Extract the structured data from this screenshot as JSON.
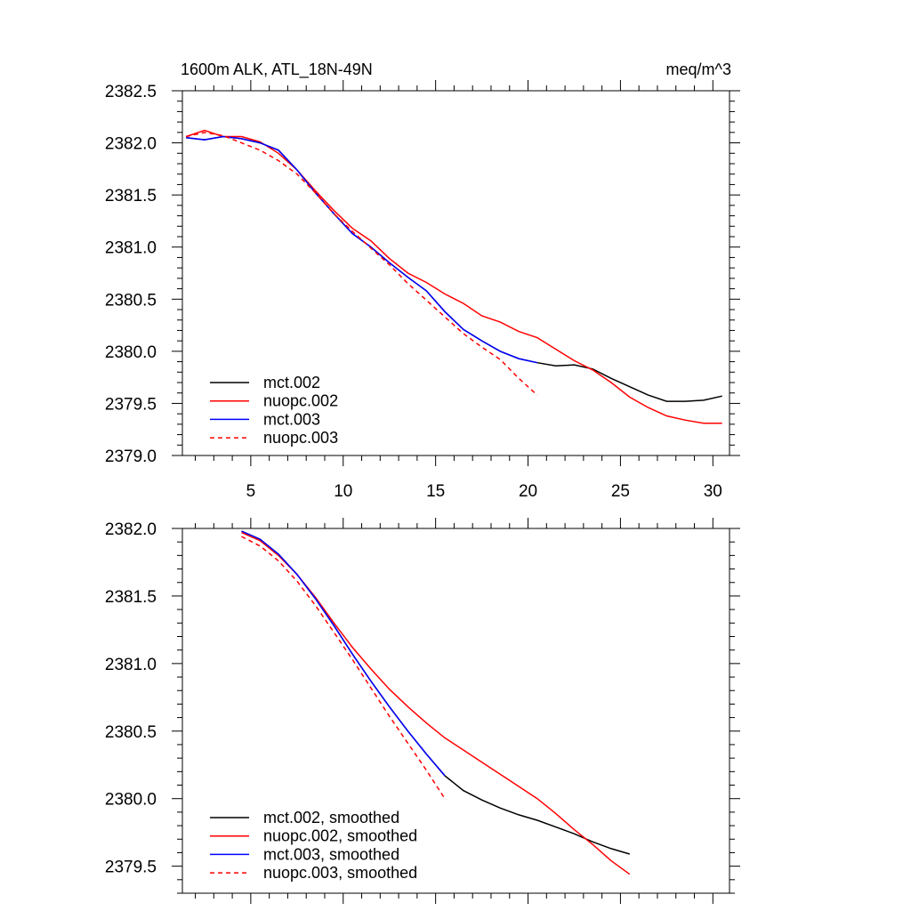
{
  "chart_data": [
    {
      "type": "line",
      "title": "1600m ALK, ATL_18N-49N",
      "units": "meq/m^3",
      "xlim": [
        1.3,
        30.9
      ],
      "ylim": [
        2379.0,
        2382.5
      ],
      "x_ticks": [
        5,
        10,
        15,
        20,
        25,
        30
      ],
      "y_ticks": [
        2379.0,
        2379.5,
        2380.0,
        2380.5,
        2381.0,
        2381.5,
        2382.0,
        2382.5
      ],
      "y_tick_labels": [
        "2379.0",
        "2379.5",
        "2380.0",
        "2380.5",
        "2381.0",
        "2381.5",
        "2382.0",
        "2382.5"
      ],
      "series": [
        {
          "name": "mct.002",
          "color": "#000000",
          "dash": "solid",
          "points": [
            [
              1.5,
              2382.05
            ],
            [
              2.5,
              2382.03
            ],
            [
              3.5,
              2382.06
            ],
            [
              4.5,
              2382.04
            ],
            [
              5.5,
              2382.0
            ],
            [
              6.5,
              2381.93
            ],
            [
              7.5,
              2381.74
            ],
            [
              8.5,
              2381.52
            ],
            [
              9.5,
              2381.32
            ],
            [
              10.5,
              2381.13
            ],
            [
              11.5,
              2381.0
            ],
            [
              12.5,
              2380.85
            ],
            [
              13.5,
              2380.71
            ],
            [
              14.5,
              2380.58
            ],
            [
              15.5,
              2380.38
            ],
            [
              16.5,
              2380.21
            ],
            [
              17.5,
              2380.1
            ],
            [
              18.5,
              2380.0
            ],
            [
              19.5,
              2379.93
            ],
            [
              20.5,
              2379.89
            ],
            [
              21.5,
              2379.86
            ],
            [
              22.5,
              2379.87
            ],
            [
              23.5,
              2379.83
            ],
            [
              24.5,
              2379.74
            ],
            [
              25.5,
              2379.66
            ],
            [
              26.5,
              2379.58
            ],
            [
              27.5,
              2379.52
            ],
            [
              28.5,
              2379.52
            ],
            [
              29.5,
              2379.53
            ],
            [
              30.5,
              2379.57
            ]
          ]
        },
        {
          "name": "nuopc.002",
          "color": "#ff0000",
          "dash": "solid",
          "points": [
            [
              1.5,
              2382.06
            ],
            [
              2.5,
              2382.12
            ],
            [
              3.5,
              2382.06
            ],
            [
              4.5,
              2382.06
            ],
            [
              5.5,
              2382.01
            ],
            [
              6.5,
              2381.9
            ],
            [
              7.5,
              2381.74
            ],
            [
              8.5,
              2381.54
            ],
            [
              9.5,
              2381.35
            ],
            [
              10.5,
              2381.18
            ],
            [
              11.5,
              2381.06
            ],
            [
              12.5,
              2380.89
            ],
            [
              13.5,
              2380.75
            ],
            [
              14.5,
              2380.66
            ],
            [
              15.5,
              2380.55
            ],
            [
              16.5,
              2380.46
            ],
            [
              17.5,
              2380.34
            ],
            [
              18.5,
              2380.28
            ],
            [
              19.5,
              2380.19
            ],
            [
              20.5,
              2380.13
            ],
            [
              21.5,
              2380.02
            ],
            [
              22.5,
              2379.91
            ],
            [
              23.5,
              2379.82
            ],
            [
              24.5,
              2379.7
            ],
            [
              25.5,
              2379.56
            ],
            [
              26.5,
              2379.46
            ],
            [
              27.5,
              2379.38
            ],
            [
              28.5,
              2379.34
            ],
            [
              29.5,
              2379.31
            ],
            [
              30.5,
              2379.31
            ]
          ]
        },
        {
          "name": "mct.003",
          "color": "#0000ff",
          "dash": "solid",
          "points": [
            [
              1.5,
              2382.05
            ],
            [
              2.5,
              2382.03
            ],
            [
              3.5,
              2382.06
            ],
            [
              4.5,
              2382.04
            ],
            [
              5.5,
              2382.0
            ],
            [
              6.5,
              2381.93
            ],
            [
              7.5,
              2381.74
            ],
            [
              8.5,
              2381.52
            ],
            [
              9.5,
              2381.32
            ],
            [
              10.5,
              2381.13
            ],
            [
              11.5,
              2381.0
            ],
            [
              12.5,
              2380.85
            ],
            [
              13.5,
              2380.71
            ],
            [
              14.5,
              2380.58
            ],
            [
              15.5,
              2380.38
            ],
            [
              16.5,
              2380.21
            ],
            [
              17.5,
              2380.1
            ],
            [
              18.5,
              2380.0
            ],
            [
              19.5,
              2379.93
            ],
            [
              20.5,
              2379.89
            ]
          ]
        },
        {
          "name": "nuopc.003",
          "color": "#ff0000",
          "dash": "dashed",
          "points": [
            [
              1.5,
              2382.06
            ],
            [
              2.5,
              2382.1
            ],
            [
              3.5,
              2382.07
            ],
            [
              4.5,
              2382.0
            ],
            [
              5.5,
              2381.93
            ],
            [
              6.5,
              2381.83
            ],
            [
              7.5,
              2381.7
            ],
            [
              8.5,
              2381.52
            ],
            [
              9.5,
              2381.32
            ],
            [
              10.5,
              2381.15
            ],
            [
              11.5,
              2380.99
            ],
            [
              12.5,
              2380.83
            ],
            [
              13.5,
              2380.65
            ],
            [
              14.5,
              2380.49
            ],
            [
              15.5,
              2380.33
            ],
            [
              16.5,
              2380.17
            ],
            [
              17.5,
              2380.04
            ],
            [
              18.5,
              2379.92
            ],
            [
              19.5,
              2379.74
            ],
            [
              20.5,
              2379.58
            ]
          ]
        }
      ]
    },
    {
      "type": "line",
      "xlim": [
        1.3,
        30.9
      ],
      "ylim": [
        2379.3,
        2382.0
      ],
      "x_ticks": [
        5,
        10,
        15,
        20,
        25,
        30
      ],
      "y_ticks": [
        2379.5,
        2380.0,
        2380.5,
        2381.0,
        2381.5,
        2382.0
      ],
      "y_tick_labels": [
        "2379.5",
        "2380.0",
        "2380.5",
        "2381.0",
        "2381.5",
        "2382.0"
      ],
      "series": [
        {
          "name": "mct.002, smoothed",
          "color": "#000000",
          "dash": "solid",
          "points": [
            [
              4.5,
              2381.98
            ],
            [
              5.5,
              2381.92
            ],
            [
              6.5,
              2381.81
            ],
            [
              7.5,
              2381.66
            ],
            [
              8.5,
              2381.48
            ],
            [
              9.5,
              2381.28
            ],
            [
              10.5,
              2381.07
            ],
            [
              11.5,
              2380.87
            ],
            [
              12.5,
              2380.68
            ],
            [
              13.5,
              2380.5
            ],
            [
              14.5,
              2380.33
            ],
            [
              15.5,
              2380.17
            ],
            [
              16.5,
              2380.06
            ],
            [
              17.5,
              2379.99
            ],
            [
              18.5,
              2379.93
            ],
            [
              19.5,
              2379.88
            ],
            [
              20.5,
              2379.84
            ],
            [
              21.5,
              2379.79
            ],
            [
              22.5,
              2379.74
            ],
            [
              23.5,
              2379.68
            ],
            [
              24.5,
              2379.63
            ],
            [
              25.5,
              2379.59
            ]
          ]
        },
        {
          "name": "nuopc.002, smoothed",
          "color": "#ff0000",
          "dash": "solid",
          "points": [
            [
              4.5,
              2381.97
            ],
            [
              5.5,
              2381.91
            ],
            [
              6.5,
              2381.8
            ],
            [
              7.5,
              2381.66
            ],
            [
              8.5,
              2381.49
            ],
            [
              9.5,
              2381.3
            ],
            [
              10.5,
              2381.12
            ],
            [
              11.5,
              2380.96
            ],
            [
              12.5,
              2380.81
            ],
            [
              13.5,
              2380.68
            ],
            [
              14.5,
              2380.56
            ],
            [
              15.5,
              2380.45
            ],
            [
              16.5,
              2380.36
            ],
            [
              17.5,
              2380.27
            ],
            [
              18.5,
              2380.18
            ],
            [
              19.5,
              2380.09
            ],
            [
              20.5,
              2380.0
            ],
            [
              21.5,
              2379.89
            ],
            [
              22.5,
              2379.77
            ],
            [
              23.5,
              2379.66
            ],
            [
              24.5,
              2379.54
            ],
            [
              25.5,
              2379.44
            ]
          ]
        },
        {
          "name": "mct.003, smoothed",
          "color": "#0000ff",
          "dash": "solid",
          "points": [
            [
              4.5,
              2381.98
            ],
            [
              5.5,
              2381.92
            ],
            [
              6.5,
              2381.81
            ],
            [
              7.5,
              2381.66
            ],
            [
              8.5,
              2381.48
            ],
            [
              9.5,
              2381.28
            ],
            [
              10.5,
              2381.07
            ],
            [
              11.5,
              2380.87
            ],
            [
              12.5,
              2380.68
            ],
            [
              13.5,
              2380.5
            ],
            [
              14.5,
              2380.33
            ],
            [
              15.5,
              2380.17
            ]
          ]
        },
        {
          "name": "nuopc.003, smoothed",
          "color": "#ff0000",
          "dash": "dashed",
          "points": [
            [
              4.5,
              2381.94
            ],
            [
              5.5,
              2381.87
            ],
            [
              6.5,
              2381.76
            ],
            [
              7.5,
              2381.61
            ],
            [
              8.5,
              2381.43
            ],
            [
              9.5,
              2381.23
            ],
            [
              10.5,
              2381.03
            ],
            [
              11.5,
              2380.82
            ],
            [
              12.5,
              2380.61
            ],
            [
              13.5,
              2380.41
            ],
            [
              14.5,
              2380.21
            ],
            [
              15.5,
              2380.0
            ]
          ]
        }
      ]
    }
  ]
}
